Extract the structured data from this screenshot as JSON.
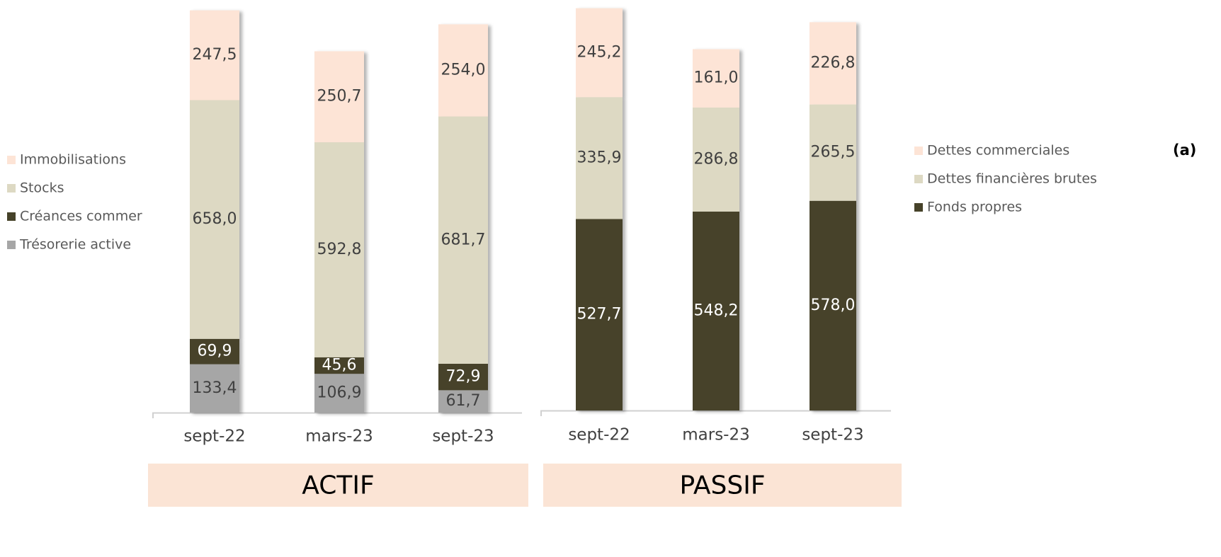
{
  "chart_data": [
    {
      "type": "bar",
      "stacked": true,
      "label": "ACTIF",
      "categories": [
        "sept-22",
        "mars-23",
        "sept-23"
      ],
      "ylim": [
        0,
        1110
      ],
      "series": [
        {
          "name": "Trésorerie active",
          "color": "#a6a6a6",
          "values": [
            133.4,
            106.9,
            61.7
          ],
          "value_labels": [
            "133,4",
            "106,9",
            "61,7"
          ]
        },
        {
          "name": "Créances commer",
          "color": "#464229",
          "values": [
            69.9,
            45.6,
            72.9
          ],
          "value_labels": [
            "69,9",
            "45,6",
            "72,9"
          ]
        },
        {
          "name": "Stocks",
          "color": "#ddd9c3",
          "values": [
            658.0,
            592.8,
            681.7
          ],
          "value_labels": [
            "658,0",
            "592,8",
            "681,7"
          ]
        },
        {
          "name": "Immobilisations",
          "color": "#fde4d6",
          "values": [
            247.5,
            250.7,
            254.0
          ],
          "value_labels": [
            "247,5",
            "250,7",
            "254,0"
          ]
        }
      ]
    },
    {
      "type": "bar",
      "stacked": true,
      "label": "PASSIF",
      "annotation": "(a)",
      "categories": [
        "sept-22",
        "mars-23",
        "sept-23"
      ],
      "ylim": [
        0,
        1110
      ],
      "series": [
        {
          "name": "Fonds propres",
          "color": "#464229",
          "values": [
            527.7,
            548.2,
            578.0
          ],
          "value_labels": [
            "527,7",
            "548,2",
            "578,0"
          ]
        },
        {
          "name": "Dettes financières brutes",
          "color": "#ddd9c3",
          "values": [
            335.9,
            286.8,
            265.5
          ],
          "value_labels": [
            "335,9",
            "286,8",
            "265,5"
          ]
        },
        {
          "name": "Dettes commerciales",
          "color": "#fde4d6",
          "values": [
            245.2,
            161.0,
            226.8
          ],
          "value_labels": [
            "245,2",
            "161,0",
            "226,8"
          ]
        }
      ]
    }
  ]
}
